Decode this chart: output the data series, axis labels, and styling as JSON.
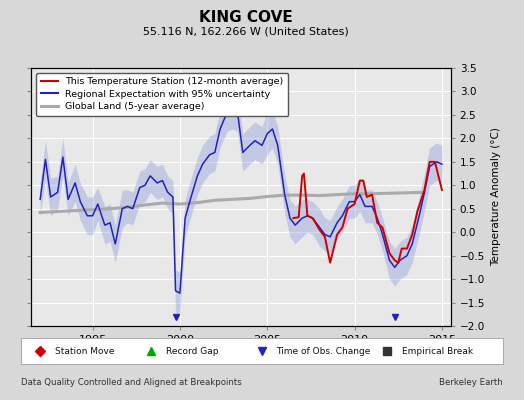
{
  "title": "KING COVE",
  "subtitle": "55.116 N, 162.266 W (United States)",
  "ylabel": "Temperature Anomaly (°C)",
  "footer_left": "Data Quality Controlled and Aligned at Breakpoints",
  "footer_right": "Berkeley Earth",
  "xlim": [
    1991.5,
    2015.5
  ],
  "ylim": [
    -2.0,
    3.5
  ],
  "yticks": [
    -2,
    -1.5,
    -1,
    -0.5,
    0,
    0.5,
    1,
    1.5,
    2,
    2.5,
    3,
    3.5
  ],
  "xticks": [
    1995,
    2000,
    2005,
    2010,
    2015
  ],
  "fig_bg_color": "#d8d8d8",
  "plot_bg_color": "#e8e8e8",
  "legend_labels": [
    "This Temperature Station (12-month average)",
    "Regional Expectation with 95% uncertainty",
    "Global Land (5-year average)"
  ],
  "bottom_legend": {
    "Station Move": [
      "D",
      "#cc0000"
    ],
    "Record Gap": [
      "^",
      "#00aa00"
    ],
    "Time of Obs. Change": [
      "v",
      "#2222cc"
    ],
    "Empirical Break": [
      "s",
      "#333333"
    ]
  },
  "time_obs_change_years": [
    1999.75,
    2012.3
  ],
  "blue_line_data": [
    [
      1992.0,
      0.7
    ],
    [
      1992.3,
      1.55
    ],
    [
      1992.6,
      0.75
    ],
    [
      1993.0,
      0.85
    ],
    [
      1993.3,
      1.6
    ],
    [
      1993.6,
      0.7
    ],
    [
      1994.0,
      1.05
    ],
    [
      1994.3,
      0.65
    ],
    [
      1994.7,
      0.35
    ],
    [
      1995.0,
      0.35
    ],
    [
      1995.3,
      0.6
    ],
    [
      1995.7,
      0.15
    ],
    [
      1996.0,
      0.2
    ],
    [
      1996.3,
      -0.25
    ],
    [
      1996.7,
      0.5
    ],
    [
      1997.0,
      0.55
    ],
    [
      1997.3,
      0.5
    ],
    [
      1997.7,
      0.95
    ],
    [
      1998.0,
      1.0
    ],
    [
      1998.3,
      1.2
    ],
    [
      1998.7,
      1.05
    ],
    [
      1999.0,
      1.1
    ],
    [
      1999.3,
      0.85
    ],
    [
      1999.6,
      0.75
    ],
    [
      1999.75,
      -1.25
    ],
    [
      2000.0,
      -1.3
    ],
    [
      2000.3,
      0.3
    ],
    [
      2000.6,
      0.7
    ],
    [
      2001.0,
      1.2
    ],
    [
      2001.3,
      1.45
    ],
    [
      2001.7,
      1.65
    ],
    [
      2002.0,
      1.7
    ],
    [
      2002.3,
      2.2
    ],
    [
      2002.7,
      2.55
    ],
    [
      2003.0,
      2.6
    ],
    [
      2003.3,
      2.55
    ],
    [
      2003.6,
      1.7
    ],
    [
      2004.0,
      1.85
    ],
    [
      2004.3,
      1.95
    ],
    [
      2004.7,
      1.85
    ],
    [
      2005.0,
      2.1
    ],
    [
      2005.3,
      2.2
    ],
    [
      2005.6,
      1.85
    ],
    [
      2006.0,
      0.8
    ],
    [
      2006.3,
      0.3
    ],
    [
      2006.6,
      0.15
    ],
    [
      2007.0,
      0.3
    ],
    [
      2007.3,
      0.35
    ],
    [
      2007.6,
      0.3
    ],
    [
      2008.0,
      0.1
    ],
    [
      2008.3,
      -0.05
    ],
    [
      2008.6,
      -0.1
    ],
    [
      2009.0,
      0.2
    ],
    [
      2009.3,
      0.35
    ],
    [
      2009.7,
      0.65
    ],
    [
      2010.0,
      0.65
    ],
    [
      2010.3,
      0.8
    ],
    [
      2010.6,
      0.55
    ],
    [
      2011.0,
      0.55
    ],
    [
      2011.3,
      0.3
    ],
    [
      2011.6,
      -0.05
    ],
    [
      2012.0,
      -0.6
    ],
    [
      2012.3,
      -0.75
    ],
    [
      2012.6,
      -0.6
    ],
    [
      2013.0,
      -0.5
    ],
    [
      2013.3,
      -0.25
    ],
    [
      2013.7,
      0.35
    ],
    [
      2014.0,
      0.85
    ],
    [
      2014.3,
      1.4
    ],
    [
      2014.7,
      1.5
    ],
    [
      2015.0,
      1.45
    ]
  ],
  "blue_upper_data": [
    [
      1992.0,
      1.05
    ],
    [
      1992.3,
      1.95
    ],
    [
      1992.6,
      1.15
    ],
    [
      1993.0,
      1.2
    ],
    [
      1993.3,
      2.0
    ],
    [
      1993.6,
      1.05
    ],
    [
      1994.0,
      1.45
    ],
    [
      1994.3,
      1.05
    ],
    [
      1994.7,
      0.75
    ],
    [
      1995.0,
      0.75
    ],
    [
      1995.3,
      0.95
    ],
    [
      1995.7,
      0.55
    ],
    [
      1996.0,
      0.6
    ],
    [
      1996.3,
      0.15
    ],
    [
      1996.7,
      0.9
    ],
    [
      1997.0,
      0.9
    ],
    [
      1997.3,
      0.85
    ],
    [
      1997.7,
      1.3
    ],
    [
      1998.0,
      1.35
    ],
    [
      1998.3,
      1.55
    ],
    [
      1998.7,
      1.4
    ],
    [
      1999.0,
      1.45
    ],
    [
      1999.3,
      1.2
    ],
    [
      1999.6,
      1.1
    ],
    [
      1999.75,
      -0.8
    ],
    [
      2000.0,
      -0.85
    ],
    [
      2000.3,
      0.7
    ],
    [
      2000.6,
      1.1
    ],
    [
      2001.0,
      1.6
    ],
    [
      2001.3,
      1.85
    ],
    [
      2001.7,
      2.05
    ],
    [
      2002.0,
      2.1
    ],
    [
      2002.3,
      2.6
    ],
    [
      2002.7,
      2.95
    ],
    [
      2003.0,
      3.0
    ],
    [
      2003.3,
      2.95
    ],
    [
      2003.6,
      2.1
    ],
    [
      2004.0,
      2.25
    ],
    [
      2004.3,
      2.35
    ],
    [
      2004.7,
      2.25
    ],
    [
      2005.0,
      2.55
    ],
    [
      2005.3,
      2.6
    ],
    [
      2005.6,
      2.25
    ],
    [
      2006.0,
      1.2
    ],
    [
      2006.3,
      0.7
    ],
    [
      2006.6,
      0.55
    ],
    [
      2007.0,
      0.7
    ],
    [
      2007.3,
      0.7
    ],
    [
      2007.6,
      0.65
    ],
    [
      2008.0,
      0.5
    ],
    [
      2008.3,
      0.3
    ],
    [
      2008.6,
      0.25
    ],
    [
      2009.0,
      0.55
    ],
    [
      2009.3,
      0.7
    ],
    [
      2009.7,
      1.0
    ],
    [
      2010.0,
      1.0
    ],
    [
      2010.3,
      1.15
    ],
    [
      2010.6,
      0.9
    ],
    [
      2011.0,
      0.9
    ],
    [
      2011.3,
      0.65
    ],
    [
      2011.6,
      0.3
    ],
    [
      2012.0,
      -0.2
    ],
    [
      2012.3,
      -0.35
    ],
    [
      2012.6,
      -0.2
    ],
    [
      2013.0,
      -0.1
    ],
    [
      2013.3,
      0.15
    ],
    [
      2013.7,
      0.75
    ],
    [
      2014.0,
      1.25
    ],
    [
      2014.3,
      1.8
    ],
    [
      2014.7,
      1.9
    ],
    [
      2015.0,
      1.85
    ]
  ],
  "blue_lower_data": [
    [
      1992.0,
      0.35
    ],
    [
      1992.3,
      1.15
    ],
    [
      1992.6,
      0.35
    ],
    [
      1993.0,
      0.5
    ],
    [
      1993.3,
      1.2
    ],
    [
      1993.6,
      0.35
    ],
    [
      1994.0,
      0.65
    ],
    [
      1994.3,
      0.25
    ],
    [
      1994.7,
      -0.05
    ],
    [
      1995.0,
      -0.05
    ],
    [
      1995.3,
      0.25
    ],
    [
      1995.7,
      -0.25
    ],
    [
      1996.0,
      -0.2
    ],
    [
      1996.3,
      -0.65
    ],
    [
      1996.7,
      0.1
    ],
    [
      1997.0,
      0.2
    ],
    [
      1997.3,
      0.15
    ],
    [
      1997.7,
      0.6
    ],
    [
      1998.0,
      0.65
    ],
    [
      1998.3,
      0.85
    ],
    [
      1998.7,
      0.7
    ],
    [
      1999.0,
      0.75
    ],
    [
      1999.3,
      0.5
    ],
    [
      1999.6,
      0.4
    ],
    [
      1999.75,
      -1.7
    ],
    [
      2000.0,
      -1.75
    ],
    [
      2000.3,
      -0.1
    ],
    [
      2000.6,
      0.3
    ],
    [
      2001.0,
      0.8
    ],
    [
      2001.3,
      1.05
    ],
    [
      2001.7,
      1.25
    ],
    [
      2002.0,
      1.3
    ],
    [
      2002.3,
      1.8
    ],
    [
      2002.7,
      2.15
    ],
    [
      2003.0,
      2.2
    ],
    [
      2003.3,
      2.15
    ],
    [
      2003.6,
      1.3
    ],
    [
      2004.0,
      1.45
    ],
    [
      2004.3,
      1.55
    ],
    [
      2004.7,
      1.45
    ],
    [
      2005.0,
      1.65
    ],
    [
      2005.3,
      1.8
    ],
    [
      2005.6,
      1.45
    ],
    [
      2006.0,
      0.4
    ],
    [
      2006.3,
      -0.1
    ],
    [
      2006.6,
      -0.25
    ],
    [
      2007.0,
      -0.1
    ],
    [
      2007.3,
      0.0
    ],
    [
      2007.6,
      -0.05
    ],
    [
      2008.0,
      -0.3
    ],
    [
      2008.3,
      -0.4
    ],
    [
      2008.6,
      -0.45
    ],
    [
      2009.0,
      -0.15
    ],
    [
      2009.3,
      0.0
    ],
    [
      2009.7,
      0.3
    ],
    [
      2010.0,
      0.3
    ],
    [
      2010.3,
      0.45
    ],
    [
      2010.6,
      0.2
    ],
    [
      2011.0,
      0.2
    ],
    [
      2011.3,
      -0.05
    ],
    [
      2011.6,
      -0.4
    ],
    [
      2012.0,
      -1.0
    ],
    [
      2012.3,
      -1.15
    ],
    [
      2012.6,
      -1.0
    ],
    [
      2013.0,
      -0.9
    ],
    [
      2013.3,
      -0.65
    ],
    [
      2013.7,
      -0.05
    ],
    [
      2014.0,
      0.45
    ],
    [
      2014.3,
      1.0
    ],
    [
      2014.7,
      1.1
    ],
    [
      2015.0,
      1.05
    ]
  ],
  "red_line_data": [
    [
      2006.5,
      0.3
    ],
    [
      2006.8,
      0.32
    ],
    [
      2007.0,
      1.2
    ],
    [
      2007.1,
      1.25
    ],
    [
      2007.3,
      0.35
    ],
    [
      2007.6,
      0.3
    ],
    [
      2008.0,
      0.05
    ],
    [
      2008.3,
      -0.1
    ],
    [
      2008.6,
      -0.65
    ],
    [
      2009.0,
      -0.05
    ],
    [
      2009.3,
      0.1
    ],
    [
      2009.6,
      0.5
    ],
    [
      2010.0,
      0.6
    ],
    [
      2010.3,
      1.1
    ],
    [
      2010.5,
      1.1
    ],
    [
      2010.7,
      0.75
    ],
    [
      2011.0,
      0.8
    ],
    [
      2011.3,
      0.2
    ],
    [
      2011.6,
      0.1
    ],
    [
      2012.0,
      -0.45
    ],
    [
      2012.3,
      -0.6
    ],
    [
      2012.5,
      -0.65
    ],
    [
      2012.7,
      -0.35
    ],
    [
      2013.0,
      -0.35
    ],
    [
      2013.3,
      -0.05
    ],
    [
      2013.6,
      0.45
    ],
    [
      2014.0,
      0.9
    ],
    [
      2014.3,
      1.5
    ],
    [
      2014.6,
      1.5
    ],
    [
      2015.0,
      0.9
    ]
  ],
  "gray_line_data": [
    [
      1992.0,
      0.42
    ],
    [
      1993.0,
      0.44
    ],
    [
      1994.0,
      0.46
    ],
    [
      1995.0,
      0.48
    ],
    [
      1996.0,
      0.5
    ],
    [
      1997.0,
      0.53
    ],
    [
      1998.0,
      0.58
    ],
    [
      1999.0,
      0.62
    ],
    [
      2000.0,
      0.6
    ],
    [
      2001.0,
      0.63
    ],
    [
      2002.0,
      0.68
    ],
    [
      2003.0,
      0.7
    ],
    [
      2004.0,
      0.72
    ],
    [
      2005.0,
      0.76
    ],
    [
      2006.0,
      0.79
    ],
    [
      2007.0,
      0.79
    ],
    [
      2008.0,
      0.78
    ],
    [
      2009.0,
      0.8
    ],
    [
      2010.0,
      0.82
    ],
    [
      2011.0,
      0.82
    ],
    [
      2012.0,
      0.83
    ],
    [
      2013.0,
      0.84
    ],
    [
      2014.0,
      0.85
    ]
  ]
}
